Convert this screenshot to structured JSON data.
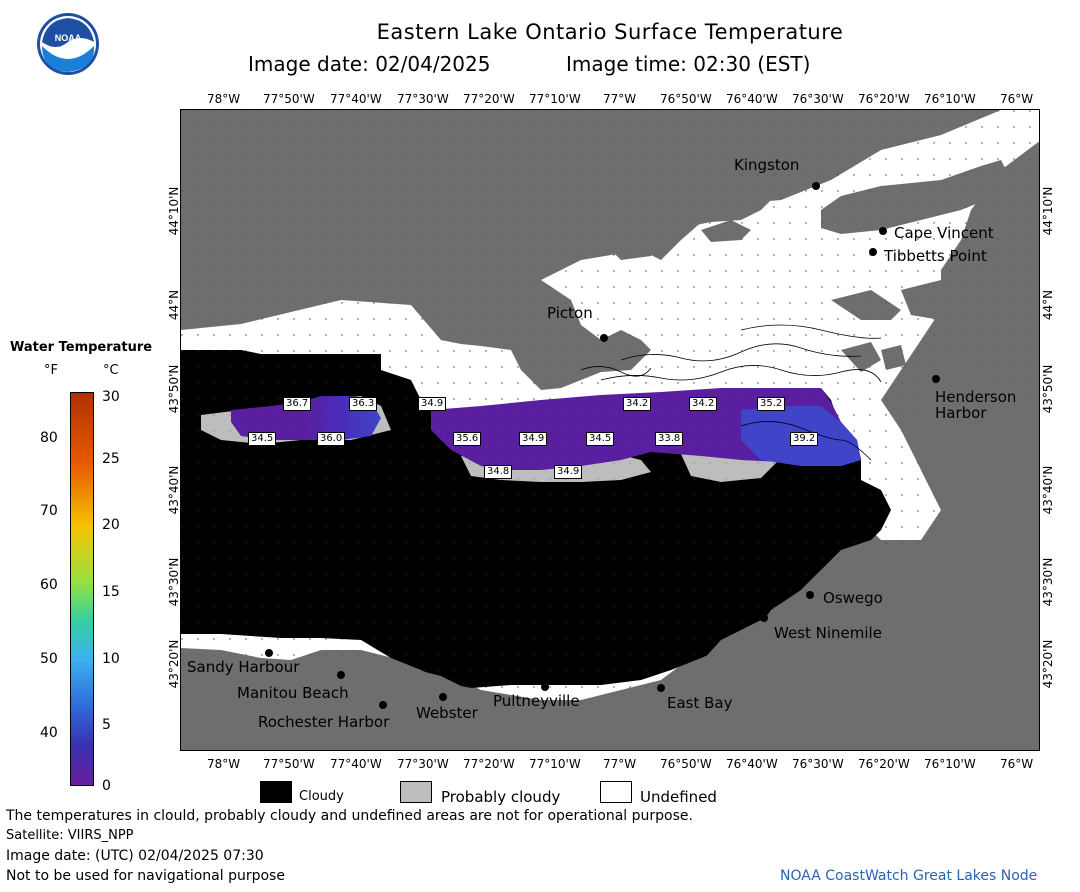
{
  "header": {
    "title": "Eastern Lake Ontario Surface Temperature",
    "image_date_label": "Image date: 02/04/2025",
    "image_time_label": "Image time: 02:30 (EST)"
  },
  "logo": {
    "text": "NOAA"
  },
  "lon_ticks": [
    "78°W",
    "77°50'W",
    "77°40'W",
    "77°30'W",
    "77°20'W",
    "77°10'W",
    "77°W",
    "76°50'W",
    "76°40'W",
    "76°30'W",
    "76°20'W",
    "76°10'W",
    "76°W"
  ],
  "lat_ticks": [
    "44°10'N",
    "44°N",
    "43°50'N",
    "43°40'N",
    "43°30'N",
    "43°20'N"
  ],
  "colorbar": {
    "title": "Water Temperature",
    "unit_f": "°F",
    "unit_c": "°C",
    "f_labels": [
      "80",
      "70",
      "60",
      "50",
      "40"
    ],
    "c_labels": [
      "30",
      "25",
      "20",
      "15",
      "10",
      "5",
      "0"
    ]
  },
  "places": {
    "kingston": "Kingston",
    "cape_vincent": "Cape Vincent",
    "tibbetts_point": "Tibbetts Point",
    "picton": "Picton",
    "henderson_harbor_1": "Henderson",
    "henderson_harbor_2": "Harbor",
    "oswego": "Oswego",
    "west_ninemile": "West Ninemile",
    "sandy_harbour": "Sandy Harbour",
    "manitou_beach": "Manitou Beach",
    "rochester_harbor": "Rochester Harbor",
    "webster": "Webster",
    "pultneyville": "Pultneyville",
    "east_bay": "East Bay"
  },
  "temps": [
    {
      "id": "t1",
      "value": "36.7"
    },
    {
      "id": "t2",
      "value": "36.3"
    },
    {
      "id": "t3",
      "value": "34.9"
    },
    {
      "id": "t4",
      "value": "34.2"
    },
    {
      "id": "t5",
      "value": "34.2"
    },
    {
      "id": "t6",
      "value": "35.2"
    },
    {
      "id": "t7",
      "value": "34.5"
    },
    {
      "id": "t8",
      "value": "36.0"
    },
    {
      "id": "t9",
      "value": "35.6"
    },
    {
      "id": "t10",
      "value": "34.9"
    },
    {
      "id": "t11",
      "value": "34.5"
    },
    {
      "id": "t12",
      "value": "33.8"
    },
    {
      "id": "t13",
      "value": "39.2"
    },
    {
      "id": "t14",
      "value": "34.8"
    },
    {
      "id": "t15",
      "value": "34.9"
    }
  ],
  "legend": {
    "cloudy": "Cloudy",
    "probably_cloudy": "Probably cloudy",
    "undefined": "Undefined"
  },
  "footer": {
    "disclaimer": "The temperatures in clould, probably cloudy and undefined areas are not for operational purpose.",
    "satellite": "Satellite: VIIRS_NPP",
    "utc_date": "Image date: (UTC) 02/04/2025  07:30",
    "nav_warning": "Not to be used for navigational purpose",
    "credit": "NOAA CoastWatch Great Lakes Node"
  },
  "colors": {
    "land": "#6e6e6e",
    "cloudy": "#000000",
    "probably_cloudy": "#bdbdbd",
    "undefined": "#ffffff",
    "water_purple": "#5a1fa0",
    "water_blue": "#3f44c8",
    "credit_blue": "#2a62b5"
  }
}
